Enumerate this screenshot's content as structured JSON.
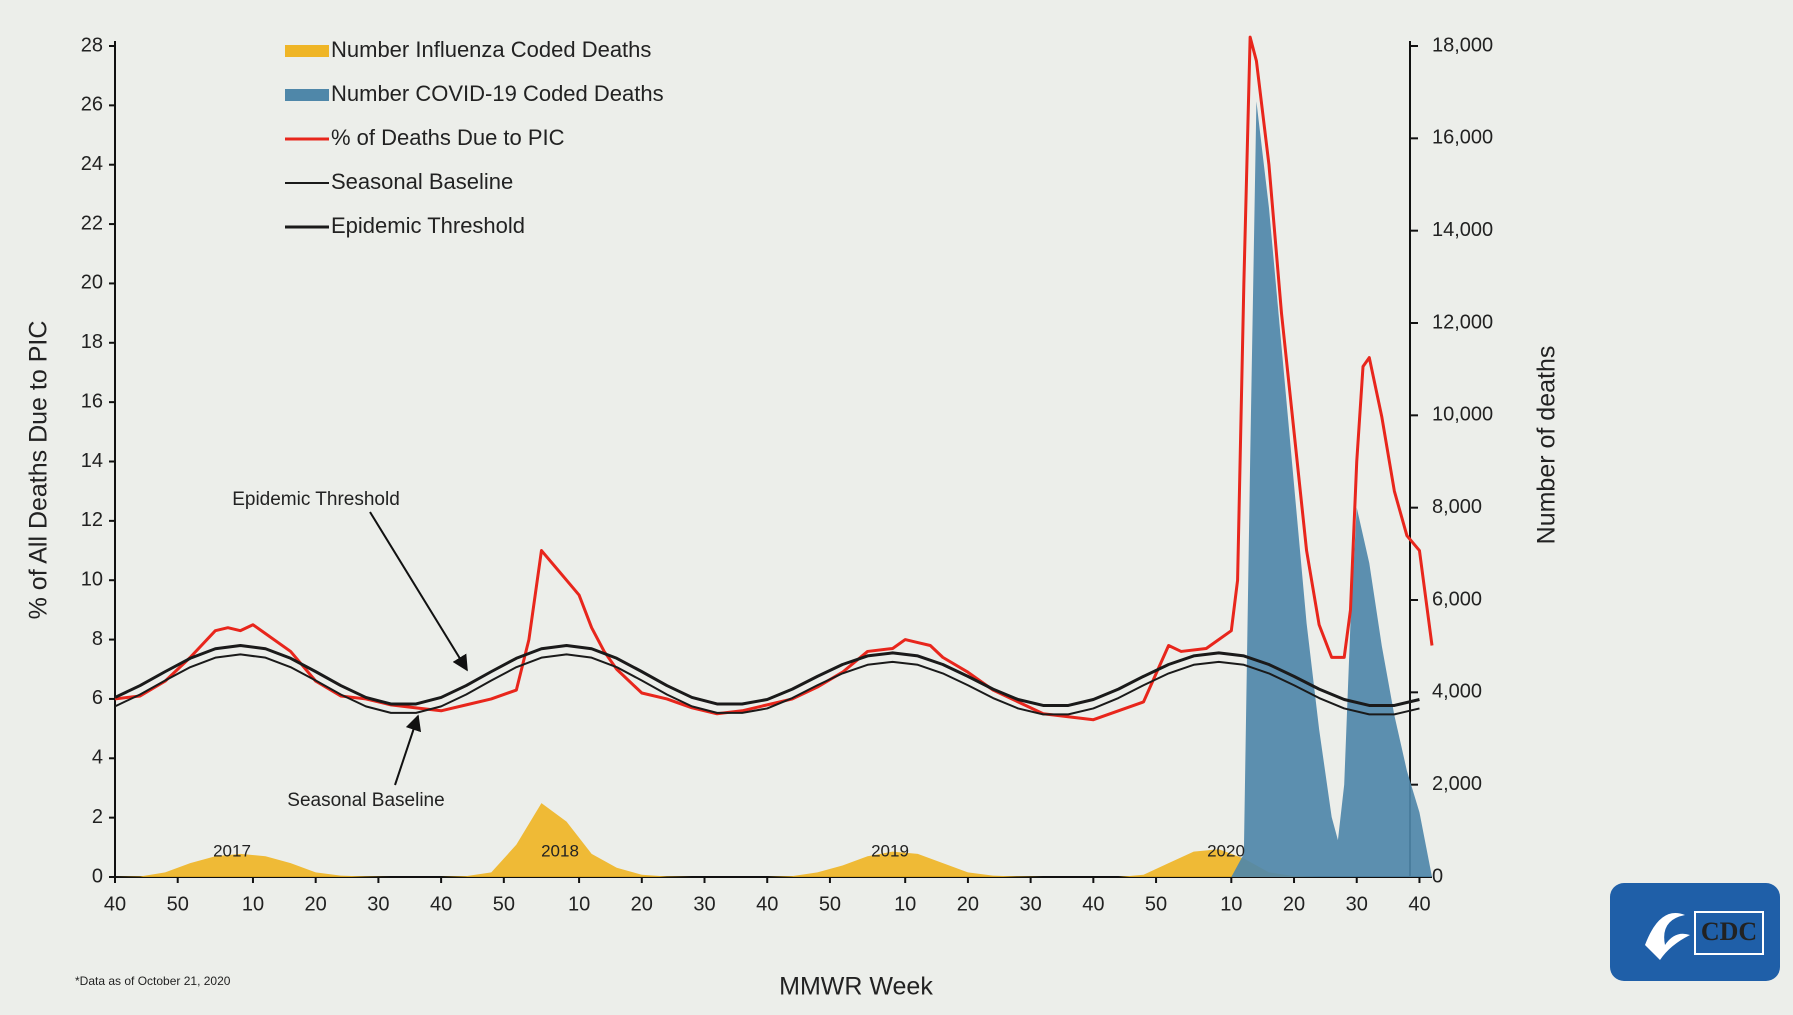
{
  "chart_data": {
    "type": "line",
    "x_label": "MMWR Week",
    "y_label": "% of All Deaths Due to PIC",
    "y2_label": "Number of deaths",
    "xlim": [
      0,
      210
    ],
    "xticks": [
      {
        "value": 0,
        "label": "40"
      },
      {
        "value": 10,
        "label": "50"
      },
      {
        "value": 22,
        "label": "10"
      },
      {
        "value": 32,
        "label": "20"
      },
      {
        "value": 42,
        "label": "30"
      },
      {
        "value": 52,
        "label": "40"
      },
      {
        "value": 62,
        "label": "50"
      },
      {
        "value": 74,
        "label": "10"
      },
      {
        "value": 84,
        "label": "20"
      },
      {
        "value": 94,
        "label": "30"
      },
      {
        "value": 104,
        "label": "40"
      },
      {
        "value": 114,
        "label": "50"
      },
      {
        "value": 126,
        "label": "10"
      },
      {
        "value": 136,
        "label": "20"
      },
      {
        "value": 146,
        "label": "30"
      },
      {
        "value": 156,
        "label": "40"
      },
      {
        "value": 166,
        "label": "50"
      },
      {
        "value": 178,
        "label": "10"
      },
      {
        "value": 188,
        "label": "20"
      },
      {
        "value": 198,
        "label": "30"
      },
      {
        "value": 208,
        "label": "40"
      }
    ],
    "ylim": [
      0,
      28
    ],
    "yticks": [
      0,
      2,
      4,
      6,
      8,
      10,
      12,
      14,
      16,
      18,
      20,
      22,
      24,
      26,
      28
    ],
    "y2lim": [
      0,
      18000
    ],
    "y2ticks": [
      0,
      {
        "value": 2000,
        "label": "2,000"
      },
      {
        "value": 4000,
        "label": "4,000"
      },
      {
        "value": 6000,
        "label": "6,000"
      },
      {
        "value": 8000,
        "label": "8,000"
      },
      {
        "value": 10000,
        "label": "10,000"
      },
      {
        "value": 12000,
        "label": "12,000"
      },
      {
        "value": 14000,
        "label": "14,000"
      },
      {
        "value": 16000,
        "label": "16,000"
      },
      {
        "value": 18000,
        "label": "18,000"
      }
    ],
    "grid": false,
    "legend": "top-left",
    "series": [
      {
        "name": "Number Influenza Coded Deaths",
        "color": "#efb526",
        "kind": "area",
        "axis": "y2",
        "x": [
          0,
          4,
          8,
          12,
          16,
          20,
          24,
          28,
          32,
          36,
          40,
          44,
          48,
          52,
          56,
          60,
          64,
          68,
          72,
          76,
          80,
          84,
          88,
          92,
          96,
          100,
          104,
          108,
          112,
          116,
          120,
          124,
          128,
          132,
          136,
          140,
          144,
          148,
          152,
          156,
          160,
          164,
          168,
          172,
          176,
          180,
          184,
          188,
          192,
          196,
          200,
          204,
          208
        ],
        "values": [
          0,
          10,
          100,
          300,
          450,
          500,
          450,
          300,
          100,
          30,
          10,
          0,
          0,
          0,
          20,
          100,
          700,
          1600,
          1200,
          500,
          200,
          50,
          10,
          0,
          0,
          0,
          0,
          20,
          100,
          250,
          450,
          550,
          500,
          300,
          100,
          30,
          10,
          0,
          0,
          0,
          0,
          50,
          300,
          550,
          600,
          400,
          100,
          20,
          0,
          0,
          0,
          0,
          0
        ]
      },
      {
        "name": "Number COVID-19 Coded Deaths",
        "color": "#4f87a9",
        "kind": "area",
        "axis": "y2",
        "x": [
          178,
          180,
          181,
          182,
          184,
          186,
          188,
          190,
          192,
          194,
          195,
          196,
          197,
          198,
          200,
          202,
          204,
          206,
          208,
          210
        ],
        "values": [
          0,
          500,
          9000,
          16800,
          14500,
          11500,
          8500,
          5500,
          3200,
          1300,
          800,
          2000,
          5500,
          8000,
          6800,
          5000,
          3500,
          2300,
          1400,
          0
        ]
      },
      {
        "name": "% of Deaths Due to PIC",
        "color": "#e8261c",
        "kind": "line",
        "width": 3,
        "x": [
          0,
          4,
          8,
          12,
          16,
          18,
          20,
          22,
          24,
          28,
          32,
          36,
          40,
          44,
          48,
          52,
          56,
          60,
          64,
          66,
          68,
          70,
          72,
          74,
          76,
          78,
          80,
          84,
          88,
          92,
          96,
          100,
          104,
          108,
          112,
          116,
          120,
          124,
          126,
          128,
          130,
          132,
          136,
          140,
          144,
          148,
          152,
          156,
          160,
          164,
          168,
          170,
          174,
          178,
          179,
          180,
          181,
          182,
          184,
          186,
          188,
          190,
          192,
          194,
          196,
          197,
          198,
          199,
          200,
          202,
          204,
          206,
          208,
          210
        ],
        "values": [
          6.0,
          6.1,
          6.6,
          7.4,
          8.3,
          8.4,
          8.3,
          8.5,
          8.2,
          7.6,
          6.6,
          6.1,
          6.0,
          5.8,
          5.7,
          5.6,
          5.8,
          6.0,
          6.3,
          8.0,
          11.0,
          10.5,
          10.0,
          9.5,
          8.4,
          7.6,
          7.0,
          6.2,
          6.0,
          5.7,
          5.5,
          5.6,
          5.8,
          6.0,
          6.4,
          6.9,
          7.6,
          7.7,
          8.0,
          7.9,
          7.8,
          7.4,
          6.9,
          6.3,
          5.9,
          5.5,
          5.4,
          5.3,
          5.6,
          5.9,
          7.8,
          7.6,
          7.7,
          8.3,
          10,
          20,
          28.3,
          27.5,
          24,
          19,
          15,
          11,
          8.5,
          7.4,
          7.4,
          9,
          14,
          17.2,
          17.5,
          15.5,
          13,
          11.5,
          11.0,
          7.8
        ]
      },
      {
        "name": "Seasonal Baseline",
        "color": "#1a1a1a",
        "kind": "line",
        "width": 2,
        "x": [
          0,
          4,
          8,
          12,
          16,
          20,
          24,
          28,
          32,
          36,
          40,
          44,
          48,
          52,
          56,
          60,
          64,
          68,
          72,
          76,
          80,
          84,
          88,
          92,
          96,
          100,
          104,
          108,
          112,
          116,
          120,
          124,
          128,
          132,
          136,
          140,
          144,
          148,
          152,
          156,
          160,
          164,
          168,
          172,
          176,
          180,
          184,
          188,
          192,
          196,
          200,
          204,
          208
        ],
        "values": [
          5.75,
          6.15,
          6.62,
          7.07,
          7.39,
          7.5,
          7.39,
          7.07,
          6.62,
          6.15,
          5.75,
          5.53,
          5.53,
          5.75,
          6.15,
          6.62,
          7.07,
          7.39,
          7.5,
          7.39,
          7.07,
          6.62,
          6.15,
          5.75,
          5.53,
          5.53,
          5.68,
          6.03,
          6.46,
          6.86,
          7.15,
          7.25,
          7.15,
          6.86,
          6.46,
          6.03,
          5.68,
          5.48,
          5.48,
          5.68,
          6.03,
          6.46,
          6.86,
          7.15,
          7.25,
          7.15,
          6.86,
          6.46,
          6.03,
          5.68,
          5.48,
          5.48,
          5.68
        ]
      },
      {
        "name": "Epidemic Threshold",
        "color": "#1a1a1a",
        "kind": "line",
        "width": 3,
        "x": [
          0,
          4,
          8,
          12,
          16,
          20,
          24,
          28,
          32,
          36,
          40,
          44,
          48,
          52,
          56,
          60,
          64,
          68,
          72,
          76,
          80,
          84,
          88,
          92,
          96,
          100,
          104,
          108,
          112,
          116,
          120,
          124,
          128,
          132,
          136,
          140,
          144,
          148,
          152,
          156,
          160,
          164,
          168,
          172,
          176,
          180,
          184,
          188,
          192,
          196,
          200,
          204,
          208
        ],
        "values": [
          6.05,
          6.45,
          6.92,
          7.37,
          7.69,
          7.8,
          7.69,
          7.37,
          6.92,
          6.45,
          6.05,
          5.83,
          5.83,
          6.05,
          6.45,
          6.92,
          7.37,
          7.69,
          7.8,
          7.69,
          7.37,
          6.92,
          6.45,
          6.05,
          5.83,
          5.83,
          5.98,
          6.33,
          6.76,
          7.16,
          7.45,
          7.55,
          7.45,
          7.16,
          6.76,
          6.33,
          5.98,
          5.78,
          5.78,
          5.98,
          6.33,
          6.76,
          7.16,
          7.45,
          7.55,
          7.45,
          7.16,
          6.76,
          6.33,
          5.98,
          5.78,
          5.78,
          5.98
        ]
      }
    ],
    "annotations": [
      "Epidemic Threshold",
      "Seasonal Baseline"
    ],
    "year_labels": [
      "2017",
      "2018",
      "2019",
      "2020"
    ],
    "footnote": "*Data as of October 21, 2020",
    "logo_text": "CDC"
  }
}
